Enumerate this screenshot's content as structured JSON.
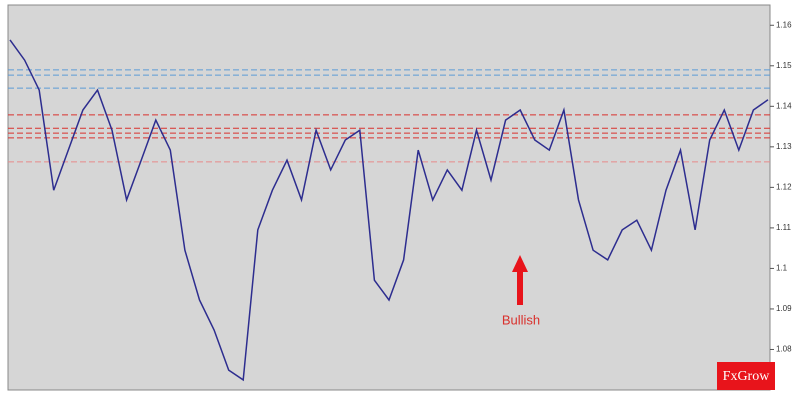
{
  "chart_data": {
    "type": "line",
    "values": [
      1.1564,
      1.1514,
      1.144,
      1.1193,
      1.1292,
      1.1391,
      1.144,
      1.1341,
      1.1169,
      1.1267,
      1.1366,
      1.1292,
      1.1045,
      1.0922,
      1.0848,
      1.0749,
      1.0725,
      1.1095,
      1.1193,
      1.1267,
      1.1169,
      1.1341,
      1.1243,
      1.1317,
      1.1341,
      1.0971,
      1.0922,
      1.1021,
      1.1292,
      1.1169,
      1.1243,
      1.1193,
      1.1341,
      1.1218,
      1.1366,
      1.1391,
      1.1317,
      1.1292,
      1.1391,
      1.1169,
      1.1045,
      1.1021,
      1.1095,
      1.1119,
      1.1045,
      1.1193,
      1.1292,
      1.1095,
      1.1317,
      1.1391,
      1.1292,
      1.1391,
      1.1416
    ],
    "color": "#2d2d8f",
    "ylim": [
      1.07,
      1.165
    ],
    "yticks": [
      1.08,
      1.09,
      1.1,
      1.11,
      1.12,
      1.13,
      1.14,
      1.15,
      1.16
    ],
    "levels": [
      {
        "value": 1.149,
        "color": "#5b9bd5"
      },
      {
        "value": 1.1477,
        "color": "#5b9bd5"
      },
      {
        "value": 1.1445,
        "color": "#5b9bd5"
      },
      {
        "value": 1.1379,
        "color": "#d9302c"
      },
      {
        "value": 1.1346,
        "color": "#d9302c"
      },
      {
        "value": 1.1334,
        "color": "#d9302c"
      },
      {
        "value": 1.1322,
        "color": "#d9302c"
      },
      {
        "value": 1.1263,
        "color": "#e88a8a"
      }
    ],
    "annotation": "Bullish",
    "logo": "FxGrow"
  }
}
